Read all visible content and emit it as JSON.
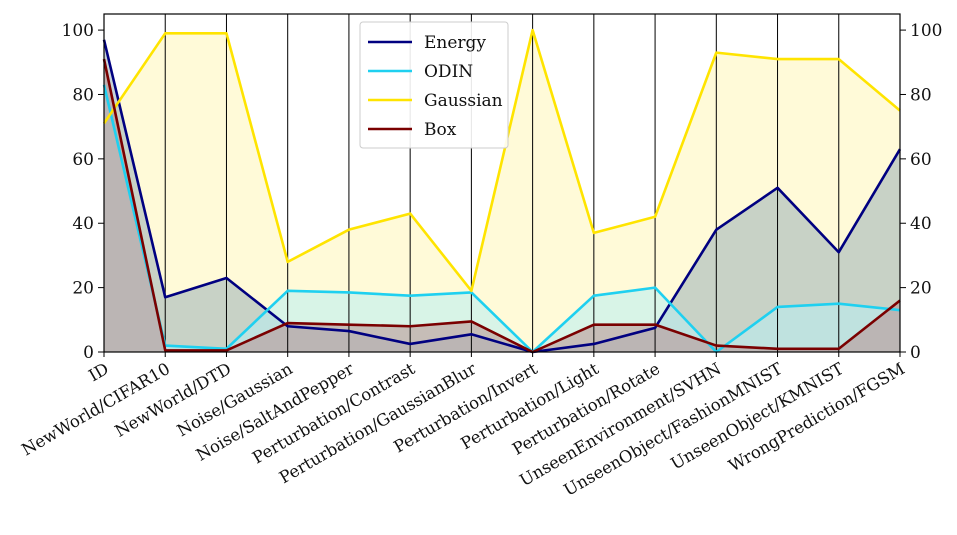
{
  "chart_data": {
    "type": "line",
    "title": "",
    "xlabel": "",
    "ylabel": "",
    "ylim": [
      0,
      105
    ],
    "yticks": [
      0,
      20,
      40,
      60,
      80,
      100
    ],
    "grid": "vertical lines at each category",
    "legend_position": "top-center",
    "categories": [
      "ID",
      "NewWorld/CIFAR10",
      "NewWorld/DTD",
      "Noise/Gaussian",
      "Noise/SaltAndPepper",
      "Perturbation/Contrast",
      "Perturbation/GaussianBlur",
      "Perturbation/Invert",
      "Perturbation/Light",
      "Perturbation/Rotate",
      "UnseenEnvironment/SVHN",
      "UnseenObject/FashionMNIST",
      "UnseenObject/KMNIST",
      "WrongPrediction/FGSM"
    ],
    "series": [
      {
        "name": "Energy",
        "color": "#000080",
        "fill": "#9ab0b8",
        "values": [
          97,
          17,
          23,
          8,
          6.5,
          2.5,
          5.5,
          0,
          2.5,
          7.5,
          38,
          51,
          31,
          63
        ]
      },
      {
        "name": "ODIN",
        "color": "#1fd0f0",
        "fill": "#b8eef4",
        "values": [
          83,
          2,
          1,
          19,
          18.5,
          17.5,
          18.5,
          0,
          17.5,
          20,
          0,
          14,
          15,
          13
        ]
      },
      {
        "name": "Gaussian",
        "color": "#ffe400",
        "fill": "#fff6b8",
        "values": [
          71,
          99,
          99,
          28,
          38,
          43,
          19,
          100,
          37,
          42,
          93,
          91,
          91,
          75
        ]
      },
      {
        "name": "Box",
        "color": "#7a0000",
        "fill": "#b89090",
        "values": [
          91,
          0.5,
          0.5,
          9,
          8.5,
          8,
          9.5,
          0,
          8.5,
          8.5,
          2,
          1,
          1,
          16
        ]
      }
    ]
  }
}
